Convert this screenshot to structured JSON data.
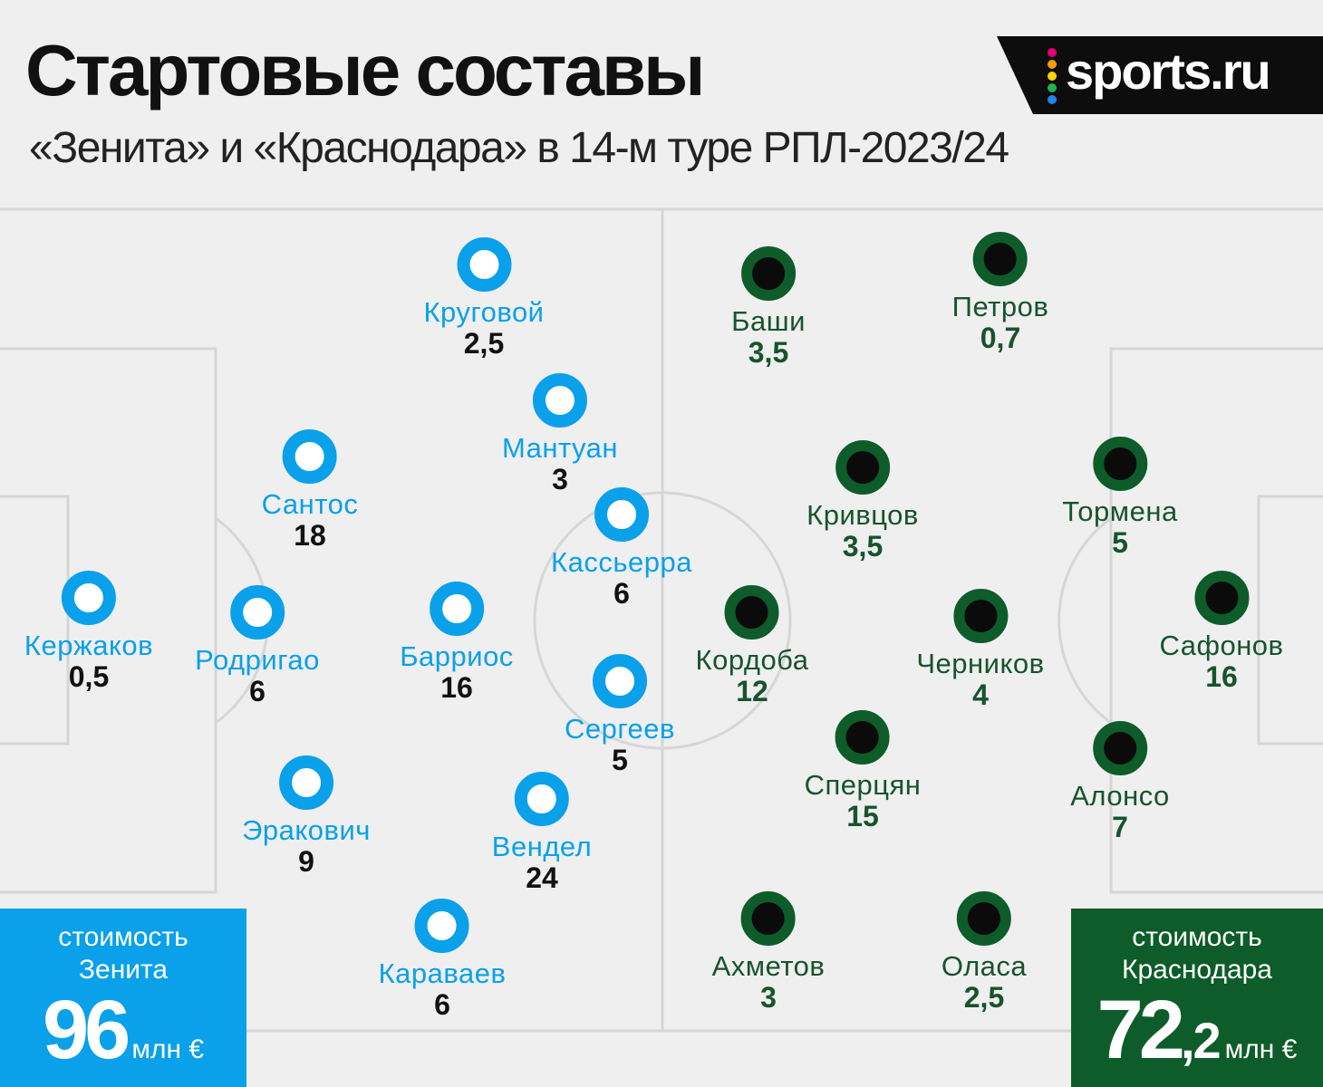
{
  "header": {
    "title": "Стартовые составы",
    "subtitle": "«Зенита» и «Краснодара» в 14-м туре РПЛ-2023/24",
    "logo_text": "sports.ru",
    "logo_dot_colors": [
      "#e2007a",
      "#f5a000",
      "#ffd400",
      "#22b14c",
      "#1e88e5",
      "#8e44ad"
    ]
  },
  "teams": {
    "home": {
      "color": "#0aa0ea",
      "value_caption_line1": "стоимость",
      "value_caption_line2": "Зенита",
      "value_amount_int": "96",
      "value_amount_dec": "",
      "value_unit": "млн €",
      "players": [
        {
          "name": "Кержаков",
          "value": "0,5"
        },
        {
          "name": "Сантос",
          "value": "18"
        },
        {
          "name": "Родригао",
          "value": "6"
        },
        {
          "name": "Эракович",
          "value": "9"
        },
        {
          "name": "Круговой",
          "value": "2,5"
        },
        {
          "name": "Барриос",
          "value": "16"
        },
        {
          "name": "Караваев",
          "value": "6"
        },
        {
          "name": "Мантуан",
          "value": "3"
        },
        {
          "name": "Вендел",
          "value": "24"
        },
        {
          "name": "Кассьерра",
          "value": "6"
        },
        {
          "name": "Сергеев",
          "value": "5"
        }
      ]
    },
    "away": {
      "color": "#0d5c2a",
      "value_caption_line1": "стоимость",
      "value_caption_line2": "Краснодара",
      "value_amount_int": "72",
      "value_amount_dec": ",2",
      "value_unit": "млн €",
      "players": [
        {
          "name": "Баши",
          "value": "3,5"
        },
        {
          "name": "Петров",
          "value": "0,7"
        },
        {
          "name": "Кривцов",
          "value": "3,5"
        },
        {
          "name": "Тормена",
          "value": "5"
        },
        {
          "name": "Кордоба",
          "value": "12"
        },
        {
          "name": "Черников",
          "value": "4"
        },
        {
          "name": "Сафонов",
          "value": "16"
        },
        {
          "name": "Сперцян",
          "value": "15"
        },
        {
          "name": "Алонсо",
          "value": "7"
        },
        {
          "name": "Ахметов",
          "value": "3"
        },
        {
          "name": "Оласа",
          "value": "2,5"
        }
      ]
    }
  }
}
